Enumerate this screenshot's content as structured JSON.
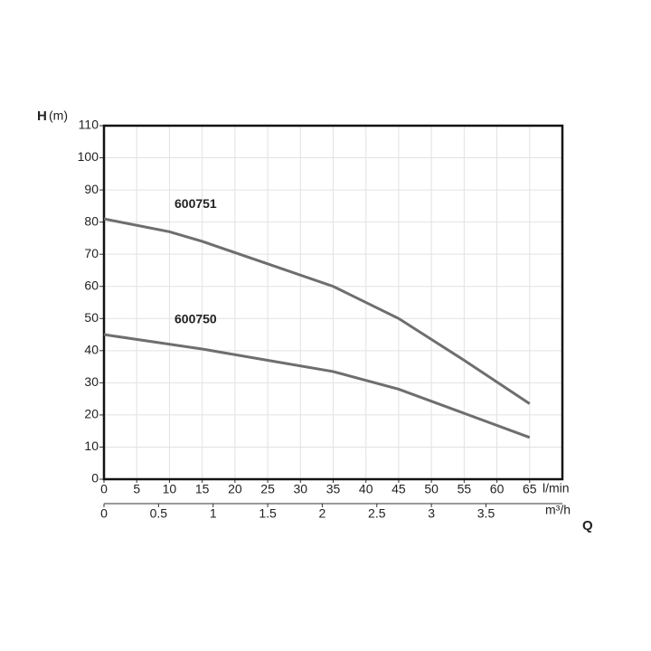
{
  "chart_data": {
    "type": "line",
    "y_label": "H",
    "y_unit": "(m)",
    "x_unit": "l/min",
    "x2_unit": "m³/h",
    "x_label": "Q",
    "xlim": [
      0,
      70
    ],
    "xticks": [
      0,
      5,
      10,
      15,
      20,
      25,
      30,
      35,
      40,
      45,
      50,
      55,
      60,
      65
    ],
    "x2lim": [
      0,
      4.2
    ],
    "x2ticks": [
      0,
      0.5,
      1,
      1.5,
      2,
      2.5,
      3,
      3.5
    ],
    "ylim": [
      0,
      110
    ],
    "yticks": [
      0,
      10,
      20,
      30,
      40,
      50,
      60,
      70,
      80,
      90,
      100,
      110
    ],
    "grid": true,
    "series": [
      {
        "name": "600751",
        "color": "#6e6e6e",
        "x": [
          0,
          10,
          15,
          25,
          35,
          45,
          55,
          65
        ],
        "values": [
          81,
          77,
          74,
          67,
          60,
          50,
          37,
          23.5
        ]
      },
      {
        "name": "600750",
        "color": "#6e6e6e",
        "x": [
          0,
          15,
          25,
          35,
          45,
          55,
          65
        ],
        "values": [
          45,
          40.5,
          37,
          33.5,
          28,
          20.5,
          13
        ]
      }
    ]
  }
}
